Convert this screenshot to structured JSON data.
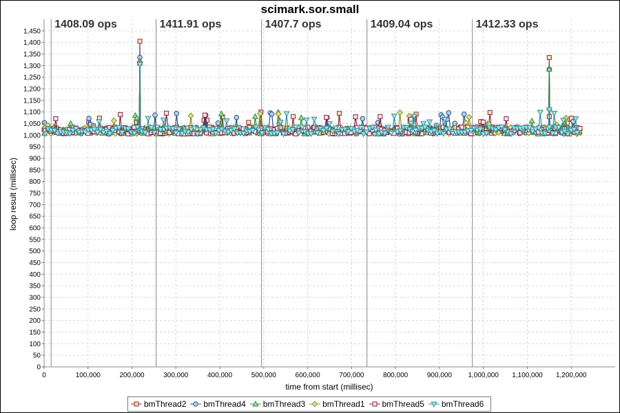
{
  "chart_data": {
    "type": "scatter",
    "title": "scimark.sor.small",
    "xlabel": "time from start (millisec)",
    "ylabel": "loop result (millisec)",
    "xlim": [
      0,
      1300000
    ],
    "ylim": [
      0,
      1500
    ],
    "x_ticks": [
      0,
      100000,
      200000,
      300000,
      400000,
      500000,
      600000,
      700000,
      800000,
      900000,
      1000000,
      1100000,
      1200000
    ],
    "x_tick_labels": [
      "0",
      "100,000",
      "200,000",
      "300,000",
      "400,000",
      "500,000",
      "600,000",
      "700,000",
      "800,000",
      "900,000",
      "1,000,000",
      "1,100,000",
      "1,200,000"
    ],
    "y_ticks": [
      0,
      50,
      100,
      150,
      200,
      250,
      300,
      350,
      400,
      450,
      500,
      550,
      600,
      650,
      700,
      750,
      800,
      850,
      900,
      950,
      1000,
      1050,
      1100,
      1150,
      1200,
      1250,
      1300,
      1350,
      1400,
      1450
    ],
    "y_tick_labels": [
      "0",
      "50",
      "100",
      "150",
      "200",
      "250",
      "300",
      "350",
      "400",
      "450",
      "500",
      "550",
      "600",
      "650",
      "700",
      "750",
      "800",
      "850",
      "900",
      "950",
      "1,000",
      "1,050",
      "1,100",
      "1,150",
      "1,200",
      "1,250",
      "1,300",
      "1,350",
      "1,400",
      "1,450"
    ],
    "grid": true,
    "legend_position": "bottom",
    "x_range": [
      0,
      1220000
    ],
    "baseline_y": 1020,
    "phases": [
      {
        "start": 16000,
        "label": "1408.09 ops"
      },
      {
        "start": 255000,
        "label": "1411.91 ops"
      },
      {
        "start": 495000,
        "label": "1407.7 ops"
      },
      {
        "start": 735000,
        "label": "1409.04 ops"
      },
      {
        "start": 975000,
        "label": "1412.33 ops"
      }
    ],
    "spikes": [
      {
        "x": 218000,
        "series": {
          "bmThread2": 1405,
          "bmThread4": 1335,
          "bmThread3": 1320,
          "bmThread1": 1315,
          "bmThread5": 1310,
          "bmThread6": 1305
        }
      },
      {
        "x": 1150000,
        "series": {
          "bmThread2": 1335,
          "bmThread4": 1285,
          "bmThread3": 1285,
          "bmThread1": 1110,
          "bmThread5": 1080,
          "bmThread6": 1110
        }
      }
    ],
    "series": [
      {
        "name": "bmThread2",
        "color": "#8b2d2d",
        "fill": "#f0e0c0",
        "marker": "square"
      },
      {
        "name": "bmThread4",
        "color": "#2a4e87",
        "fill": "#b8cfe6",
        "marker": "circle"
      },
      {
        "name": "bmThread3",
        "color": "#2f8a3a",
        "fill": "#a6d9a6",
        "marker": "triangle-up"
      },
      {
        "name": "bmThread1",
        "color": "#8a8a2a",
        "fill": "#d8e58a",
        "marker": "diamond"
      },
      {
        "name": "bmThread5",
        "color": "#8b1e3e",
        "fill": "#f4e4ec",
        "marker": "square-bar"
      },
      {
        "name": "bmThread6",
        "color": "#2f8f9a",
        "fill": "#a6e3e8",
        "marker": "triangle-down"
      }
    ]
  }
}
